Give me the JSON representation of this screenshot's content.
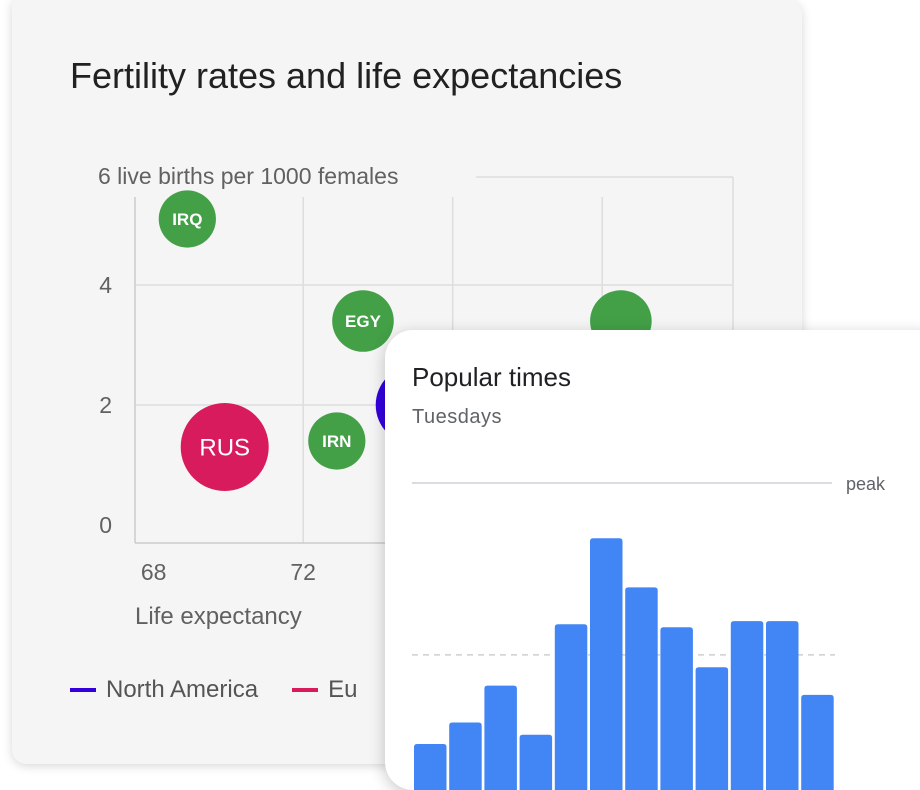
{
  "colors": {
    "north_america": "#3300dd",
    "europe": "#d81b5c",
    "middle_east": "#43a047",
    "bars": "#4285f4"
  },
  "chart_data": [
    {
      "type": "scatter",
      "title": "Fertility rates and life expectancies",
      "ylabel": "6 live births per 1000 females",
      "xlabel": "Life expectancy",
      "x_ticks": [
        "68",
        "72"
      ],
      "y_ticks": [
        "4",
        "2",
        "0"
      ],
      "xlim": [
        67.5,
        83.5
      ],
      "ylim": [
        -0.3,
        5.8
      ],
      "grid": true,
      "legend": [
        {
          "label": "North America",
          "color": "#3300dd"
        },
        {
          "label": "Eu",
          "color": "#d81b5c"
        }
      ],
      "points": [
        {
          "label": "IRQ",
          "x": 68.9,
          "y": 5.1,
          "size": 1.3,
          "color": "#43a047"
        },
        {
          "label": "EGY",
          "x": 73.6,
          "y": 3.4,
          "size": 1.4,
          "color": "#43a047"
        },
        {
          "label": "RUS",
          "x": 69.9,
          "y": 1.3,
          "size": 2.0,
          "color": "#d81b5c"
        },
        {
          "label": "IRN",
          "x": 72.9,
          "y": 1.4,
          "size": 1.3,
          "color": "#43a047"
        },
        {
          "label": "",
          "x": 80.5,
          "y": 3.4,
          "size": 1.4,
          "color": "#43a047"
        },
        {
          "label": "",
          "x": 75.0,
          "y": 2.0,
          "size": 1.8,
          "color": "#3300dd"
        }
      ]
    },
    {
      "type": "bar",
      "title": "Popular times",
      "subtitle": "Tuesdays",
      "reference_line_label": "peak",
      "ylim": [
        0,
        100
      ],
      "peak": 100,
      "average": 44,
      "values": [
        15,
        22,
        34,
        18,
        54,
        82,
        66,
        53,
        40,
        55,
        55,
        31
      ]
    }
  ]
}
